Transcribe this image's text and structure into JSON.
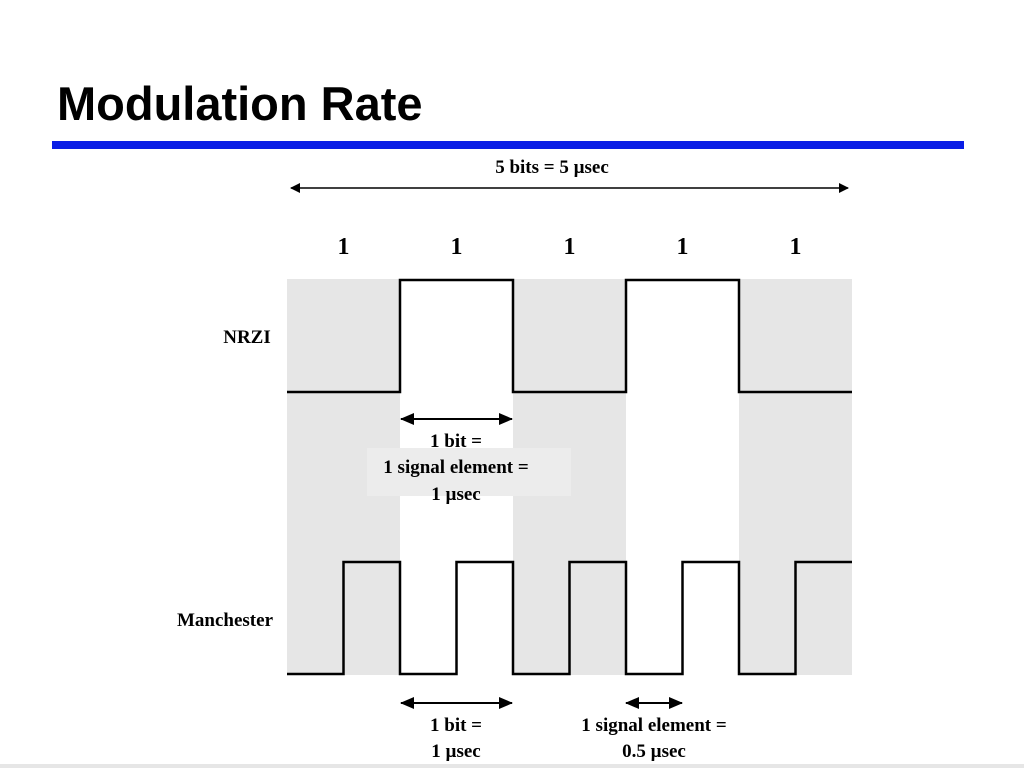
{
  "title": "Modulation Rate",
  "colors": {
    "rule": "#0a1ee6",
    "shade": "#e6e6e6",
    "signal": "#000000"
  },
  "diagram": {
    "span_label": "5 bits = 5 µsec",
    "bits": [
      "1",
      "1",
      "1",
      "1",
      "1"
    ],
    "nrzi": {
      "label": "NRZI",
      "levels": [
        0,
        1,
        0,
        1,
        0
      ]
    },
    "manchester": {
      "label": "Manchester",
      "half_levels": [
        0,
        1,
        0,
        1,
        0,
        1,
        0,
        1,
        0,
        1
      ]
    },
    "nrzi_annotation": [
      "1 bit =",
      "1 signal element =",
      "1 µsec"
    ],
    "manchester_bit_annotation": [
      "1 bit =",
      "1 µsec"
    ],
    "manchester_element_annotation": [
      "1 signal element =",
      "0.5 µsec"
    ]
  }
}
